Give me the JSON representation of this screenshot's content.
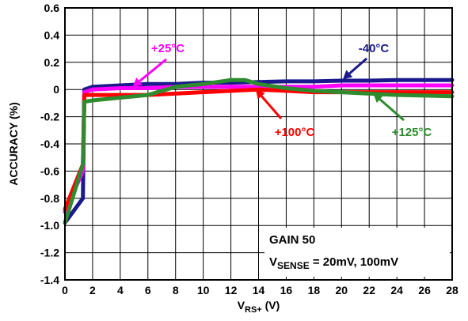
{
  "chart_data": {
    "type": "line",
    "title": "",
    "xlabel": {
      "main": "V",
      "sub": "RS+",
      "unit": " (V)"
    },
    "ylabel": "ACCURACY (%)",
    "xlim": [
      0,
      28
    ],
    "ylim": [
      -1.4,
      0.6
    ],
    "xticks": [
      0,
      2,
      4,
      6,
      8,
      10,
      12,
      14,
      16,
      18,
      20,
      22,
      24,
      26,
      28
    ],
    "yticks": [
      "0.6",
      "0.4",
      "0.2",
      "0",
      "-0.2",
      "-0.4",
      "-0.6",
      "-0.8",
      "-1.0",
      "-1.2",
      "-1.4"
    ],
    "grid": true,
    "series": [
      {
        "name": "-40°C",
        "color": "#1a1a8c",
        "x": [
          0,
          1.3,
          1.4,
          2,
          4,
          6,
          8,
          10,
          12,
          14,
          16,
          18,
          20,
          22,
          24,
          26,
          28
        ],
        "y": [
          -0.98,
          -0.8,
          0.0,
          0.02,
          0.03,
          0.04,
          0.04,
          0.05,
          0.05,
          0.055,
          0.06,
          0.06,
          0.065,
          0.065,
          0.07,
          0.07,
          0.07
        ]
      },
      {
        "name": "+25°C",
        "color": "#ff00ff",
        "x": [
          0,
          1.3,
          1.4,
          2,
          4,
          6,
          8,
          10,
          12,
          14,
          16,
          18,
          20,
          22,
          24,
          26,
          28
        ],
        "y": [
          -0.9,
          -0.6,
          -0.02,
          0.0,
          0.01,
          0.01,
          0.02,
          0.02,
          0.02,
          0.02,
          0.02,
          0.02,
          0.03,
          0.03,
          0.03,
          0.03,
          0.03
        ]
      },
      {
        "name": "+100°C",
        "color": "#ff0000",
        "x": [
          0,
          1.3,
          1.4,
          2,
          4,
          6,
          8,
          10,
          12,
          14,
          16,
          18,
          20,
          22,
          24,
          26,
          28
        ],
        "y": [
          -0.88,
          -0.55,
          -0.04,
          -0.04,
          -0.04,
          -0.04,
          -0.03,
          -0.02,
          -0.01,
          0.0,
          -0.01,
          -0.02,
          -0.02,
          -0.02,
          -0.02,
          -0.02,
          -0.02
        ]
      },
      {
        "name": "+125°C",
        "color": "#2e8b2e",
        "x": [
          0,
          1.3,
          1.4,
          2,
          4,
          6,
          8,
          10,
          12,
          13,
          14,
          16,
          18,
          20,
          22,
          24,
          26,
          28
        ],
        "y": [
          -0.98,
          -0.55,
          -0.09,
          -0.08,
          -0.06,
          -0.04,
          0.02,
          0.04,
          0.07,
          0.07,
          0.04,
          0.01,
          -0.01,
          -0.02,
          -0.03,
          -0.04,
          -0.045,
          -0.05
        ]
      }
    ],
    "annotations": [
      {
        "text": "+25°C",
        "series": "+25°C",
        "color": "#ff00ff"
      },
      {
        "text": "-40°C",
        "series": "-40°C",
        "color": "#1a1a8c"
      },
      {
        "text": "+100°C",
        "series": "+100°C",
        "color": "#ff0000"
      },
      {
        "text": "+125°C",
        "series": "+125°C",
        "color": "#2e8b2e"
      }
    ],
    "note": {
      "line1": "GAIN 50",
      "line2_main": "V",
      "line2_sub": "SENSE",
      "line2_rest": " = 20mV, 100mV"
    }
  }
}
